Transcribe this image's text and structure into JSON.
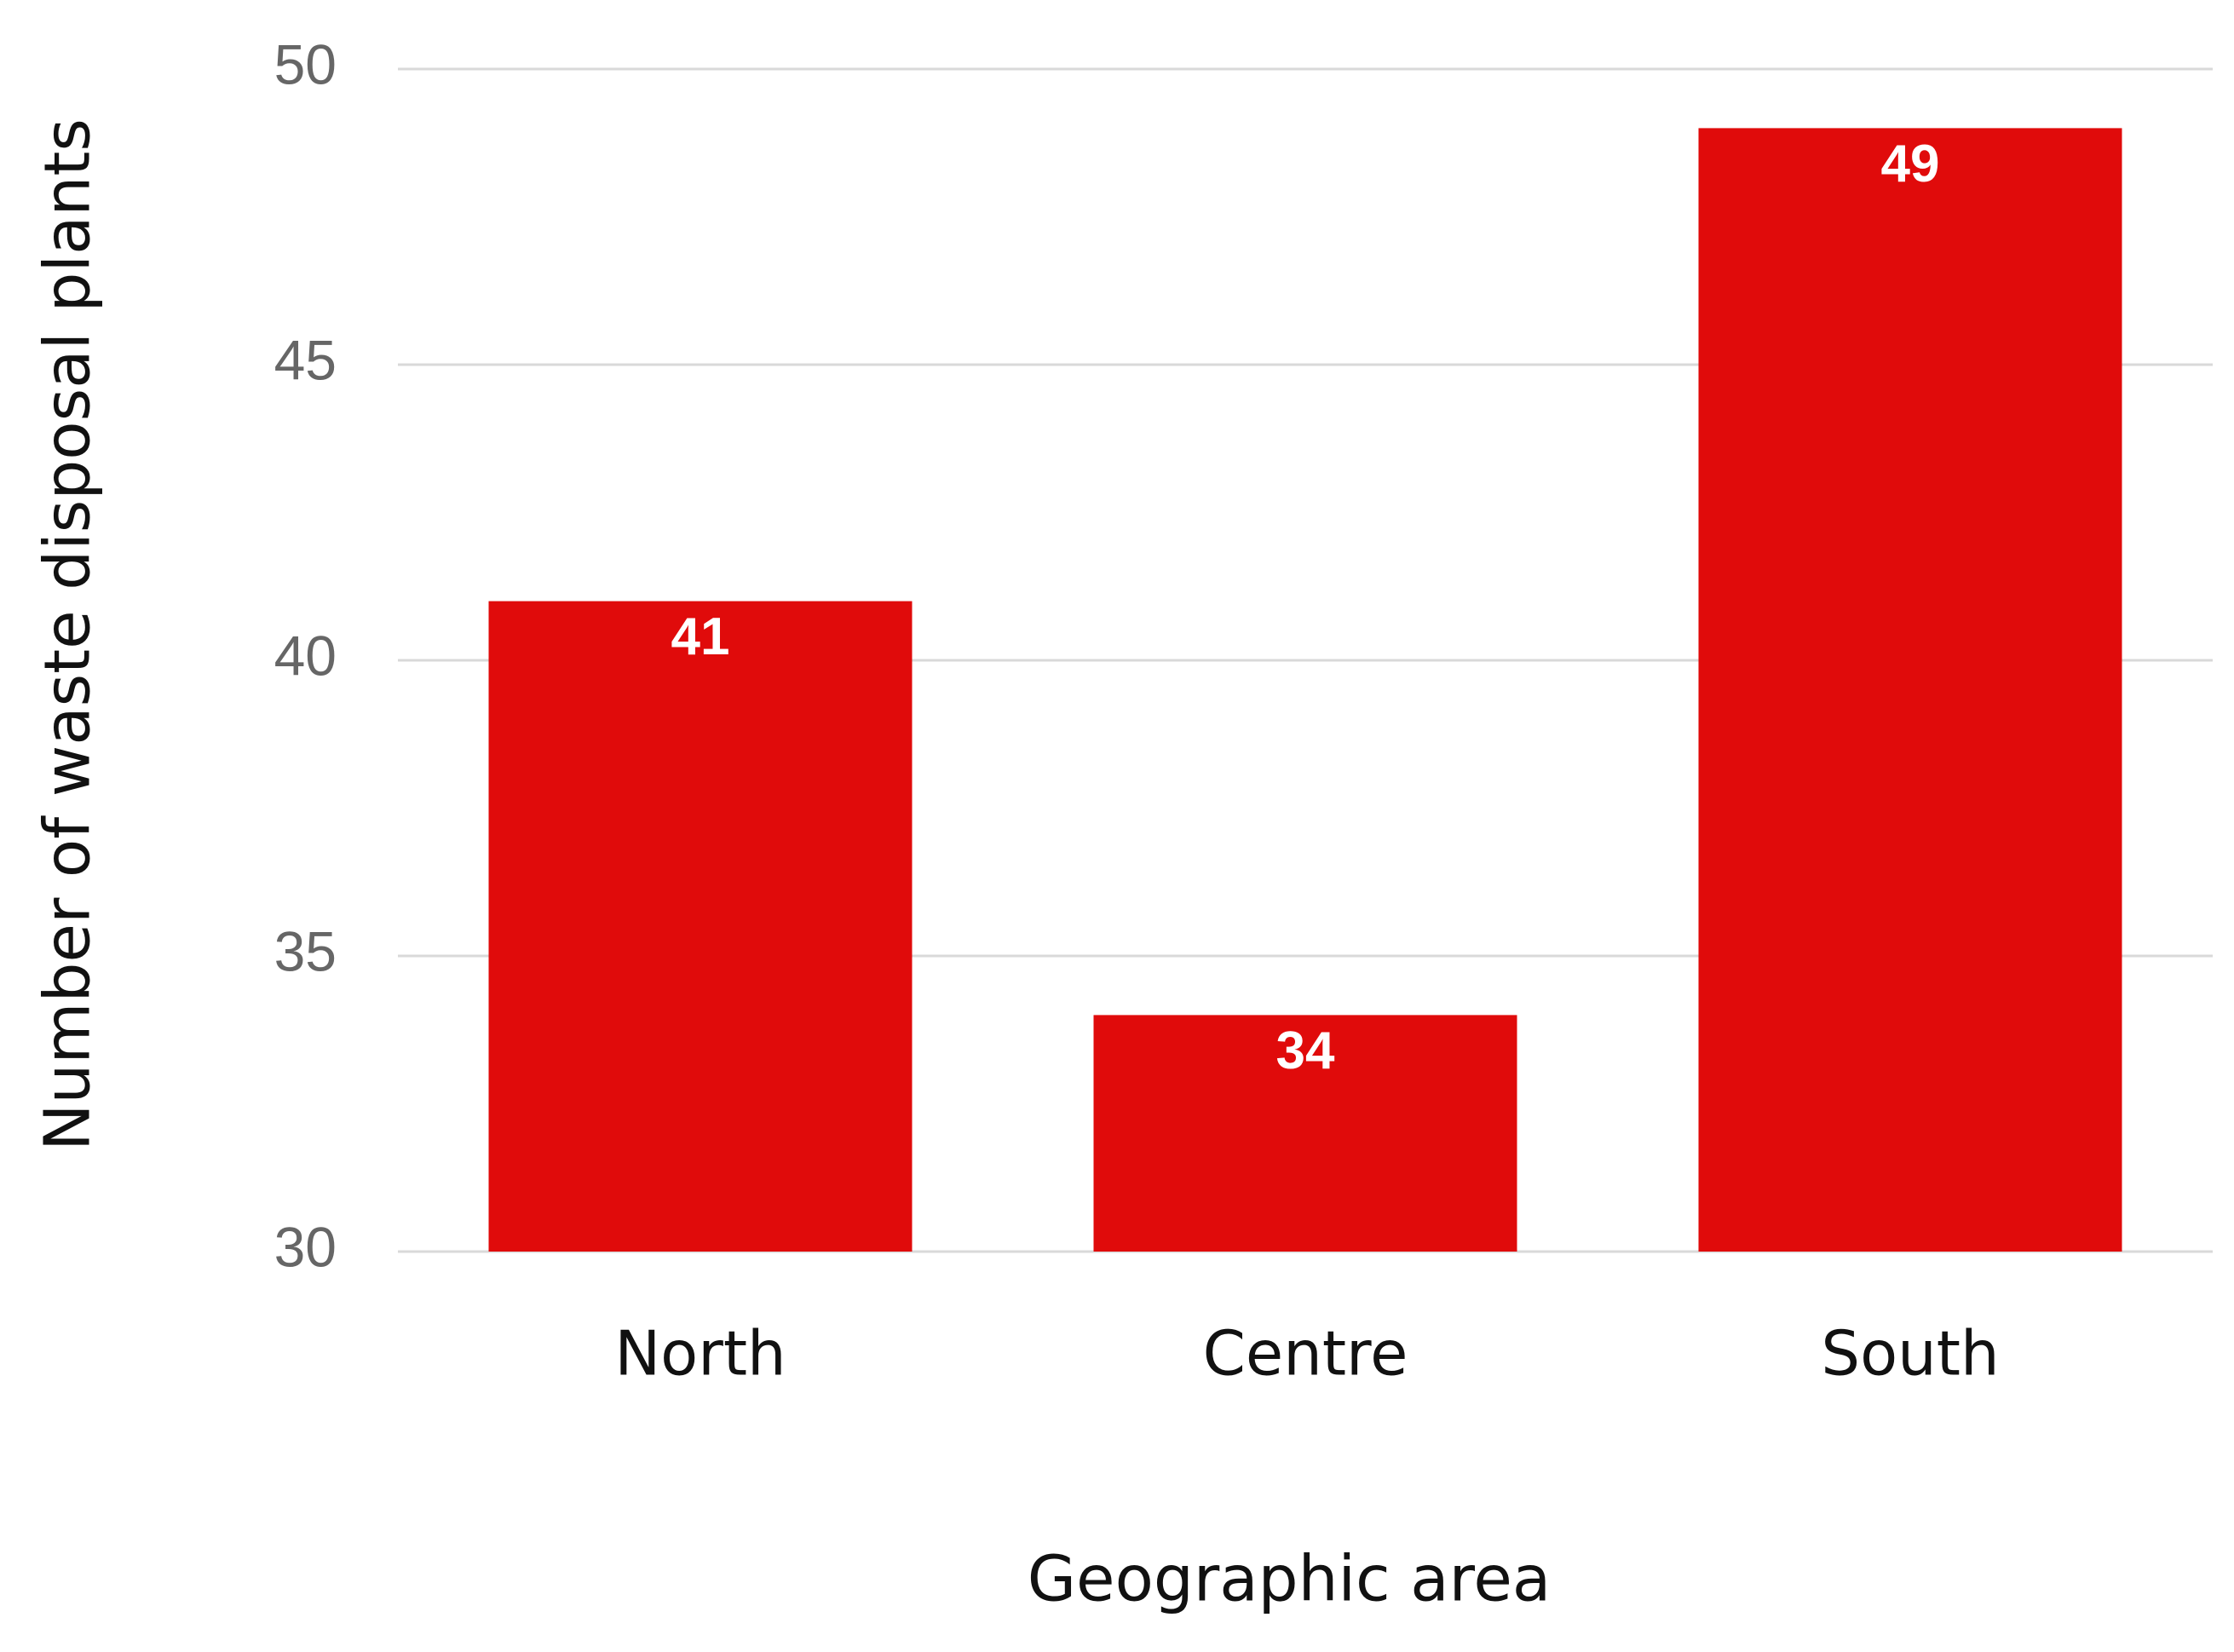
{
  "chart_data": {
    "type": "bar",
    "x_label": "Geographic area",
    "y_label": "Number of waste disposal plants",
    "categories": [
      "North",
      "Centre",
      "South"
    ],
    "values": [
      41,
      34,
      49
    ],
    "color": "#e00b0b",
    "ylim": [
      30,
      50
    ],
    "yticks": [
      30,
      35,
      40,
      45,
      50
    ],
    "grid": true
  }
}
